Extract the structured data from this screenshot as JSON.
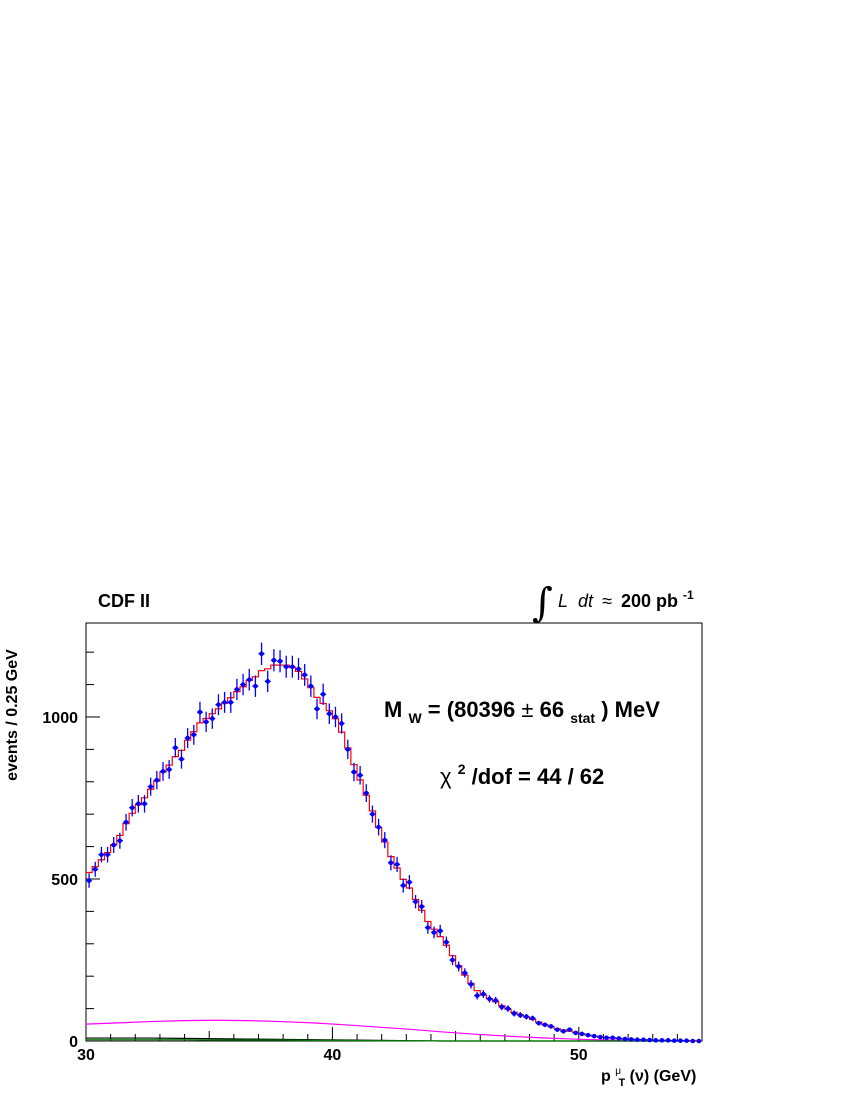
{
  "chart_data": {
    "type": "scatter",
    "experiment_label": "CDF II",
    "luminosity": {
      "integral_symbol": "∫",
      "L": "L",
      "dt": "dt",
      "approx": "≈",
      "value": "200 pb",
      "exponent": "-1"
    },
    "xlabel": {
      "p": "p",
      "sub": "T",
      "sup": "μ",
      "rest": "(ν) (GeV)"
    },
    "ylabel": "events / 0.25 GeV",
    "xlim": [
      30,
      55
    ],
    "ylim": [
      0,
      1290
    ],
    "x_ticks": [
      30,
      40,
      50
    ],
    "y_ticks": [
      0,
      500,
      1000
    ],
    "annotations": {
      "mw_prefix": "M",
      "mw_sub": "W",
      "mw_eq": " = (80396 ",
      "pm": "±",
      "mw_val": " 66",
      "mw_stat": "stat",
      "mw_suffix": ") MeV",
      "chi_sym": "χ",
      "chi_sup": "2",
      "chi_rest": "/dof = 44 / 62"
    },
    "series": [
      {
        "kind": "data",
        "color": "#0000ff",
        "x": [
          30.125,
          30.375,
          30.625,
          30.875,
          31.125,
          31.375,
          31.625,
          31.875,
          32.125,
          32.375,
          32.625,
          32.875,
          33.125,
          33.375,
          33.625,
          33.875,
          34.125,
          34.375,
          34.625,
          34.875,
          35.125,
          35.375,
          35.625,
          35.875,
          36.125,
          36.375,
          36.625,
          36.875,
          37.125,
          37.375,
          37.625,
          37.875,
          38.125,
          38.375,
          38.625,
          38.875,
          39.125,
          39.375,
          39.625,
          39.875,
          40.125,
          40.375,
          40.625,
          40.875,
          41.125,
          41.375,
          41.625,
          41.875,
          42.125,
          42.375,
          42.625,
          42.875,
          43.125,
          43.375,
          43.625,
          43.875,
          44.125,
          44.375,
          44.625,
          44.875,
          45.125,
          45.375,
          45.625,
          45.875,
          46.125,
          46.375,
          46.625,
          46.875,
          47.125,
          47.375,
          47.625,
          47.875,
          48.125,
          48.375,
          48.625,
          48.875,
          49.125,
          49.375,
          49.625,
          49.875,
          50.125,
          50.375,
          50.625,
          50.875,
          51.125,
          51.375,
          51.625,
          51.875,
          52.125,
          52.375,
          52.625,
          52.875,
          53.125,
          53.375,
          53.625,
          53.875,
          54.125,
          54.375,
          54.625,
          54.875
        ],
        "y": [
          495,
          530,
          575,
          575,
          605,
          618,
          675,
          720,
          732,
          732,
          785,
          805,
          832,
          838,
          905,
          870,
          935,
          945,
          1015,
          985,
          995,
          1038,
          1045,
          1045,
          1085,
          1100,
          1115,
          1095,
          1195,
          1110,
          1175,
          1172,
          1155,
          1155,
          1148,
          1130,
          1095,
          1025,
          1070,
          1010,
          1000,
          980,
          900,
          830,
          820,
          765,
          700,
          660,
          620,
          550,
          545,
          480,
          490,
          430,
          415,
          350,
          335,
          340,
          305,
          250,
          230,
          210,
          175,
          140,
          145,
          130,
          125,
          105,
          100,
          85,
          80,
          75,
          70,
          55,
          50,
          45,
          35,
          30,
          35,
          25,
          22,
          18,
          15,
          12,
          10,
          10,
          8,
          6,
          5,
          4,
          4,
          3,
          2,
          2,
          2,
          1,
          1,
          1,
          0,
          0
        ]
      },
      {
        "kind": "simulation",
        "color": "#ff0000"
      },
      {
        "kind": "background",
        "color": "#ff00ff",
        "y": [
          52,
          56,
          60,
          63,
          64,
          63,
          60,
          56,
          50,
          43,
          36,
          28,
          21,
          15,
          10,
          6,
          3,
          2,
          1,
          1
        ]
      },
      {
        "kind": "background",
        "color": "#000000",
        "y": [
          9,
          9,
          9,
          8,
          7,
          6,
          5,
          4,
          3,
          2,
          1,
          0,
          0,
          0,
          0,
          0,
          0,
          0,
          0,
          0
        ]
      },
      {
        "kind": "background",
        "color": "#008000",
        "y": [
          4,
          4,
          4,
          4,
          3,
          3,
          3,
          2,
          2,
          1,
          1,
          0,
          0,
          0,
          0,
          0,
          0,
          0,
          0,
          0
        ]
      }
    ]
  }
}
